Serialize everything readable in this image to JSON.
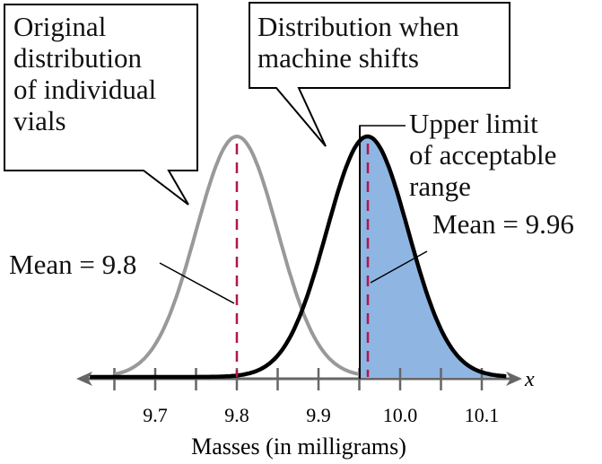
{
  "chart_data": {
    "type": "line",
    "title": "",
    "xlabel": "Masses (in milligrams)",
    "ylabel": "",
    "axis_variable": "x",
    "x_ticks": [
      9.65,
      9.7,
      9.75,
      9.8,
      9.85,
      9.9,
      9.95,
      10.0,
      10.05,
      10.1
    ],
    "x_tick_labels": [
      "9.7",
      "9.8",
      "9.9",
      "10.0",
      "10.1"
    ],
    "xlim": [
      9.62,
      10.15
    ],
    "grid": false,
    "series": [
      {
        "name": "Original distribution of individual vials",
        "distribution": "normal",
        "mean": 9.8,
        "std": 0.05,
        "color": "#999999"
      },
      {
        "name": "Distribution when machine shifts",
        "distribution": "normal",
        "mean": 9.96,
        "std": 0.05,
        "color": "#000000"
      }
    ],
    "shaded_region": {
      "from": 9.95,
      "to": 10.15,
      "under_series": "Distribution when machine shifts",
      "color": "#8fb5e3"
    },
    "reference_lines": [
      {
        "x": 9.8,
        "style": "dashed",
        "color": "#b0174a",
        "label": "Mean = 9.8"
      },
      {
        "x": 9.96,
        "style": "dashed",
        "color": "#b0174a",
        "label": "Mean = 9.96"
      },
      {
        "x": 9.95,
        "style": "solid",
        "color": "#000000",
        "label": "Upper limit of acceptable range"
      }
    ],
    "annotations": [
      "Original distribution of individual vials",
      "Distribution when machine shifts",
      "Upper limit of acceptable range",
      "Mean = 9.8",
      "Mean = 9.96"
    ]
  },
  "labels": {
    "callout_original": "Original\ndistribution\nof individual\nvials",
    "callout_shifted": "Distribution when\nmachine shifts",
    "upper_limit": "Upper limit\nof acceptable\nrange",
    "mean_original": "Mean = 9.8",
    "mean_shifted": "Mean = 9.96",
    "axis_var": "x",
    "axis_title": "Masses (in milligrams)",
    "ticks": [
      "9.7",
      "9.8",
      "9.9",
      "10.0",
      "10.1"
    ]
  }
}
